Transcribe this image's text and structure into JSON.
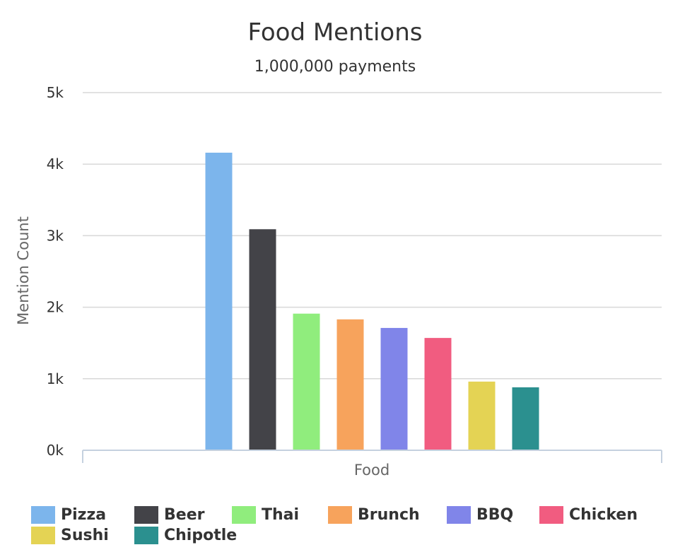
{
  "chart_data": {
    "type": "bar",
    "title": "Food Mentions",
    "subtitle": "1,000,000 payments",
    "xlabel": "Food",
    "ylabel": "Mention Count",
    "categories": [
      "Food"
    ],
    "ylim": [
      0,
      5000
    ],
    "yticks": [
      "0k",
      "1k",
      "2k",
      "3k",
      "4k",
      "5k"
    ],
    "grid": true,
    "legend_position": "bottom",
    "series": [
      {
        "name": "Pizza",
        "values": [
          4160
        ],
        "color": "#7cb5ec"
      },
      {
        "name": "Beer",
        "values": [
          3090
        ],
        "color": "#434348"
      },
      {
        "name": "Thai",
        "values": [
          1910
        ],
        "color": "#90ed7d"
      },
      {
        "name": "Brunch",
        "values": [
          1830
        ],
        "color": "#f7a35c"
      },
      {
        "name": "BBQ",
        "values": [
          1710
        ],
        "color": "#8085e9"
      },
      {
        "name": "Chicken",
        "values": [
          1570
        ],
        "color": "#f15c80"
      },
      {
        "name": "Sushi",
        "values": [
          960
        ],
        "color": "#e4d354"
      },
      {
        "name": "Chipotle",
        "values": [
          880
        ],
        "color": "#2b908f"
      }
    ]
  }
}
